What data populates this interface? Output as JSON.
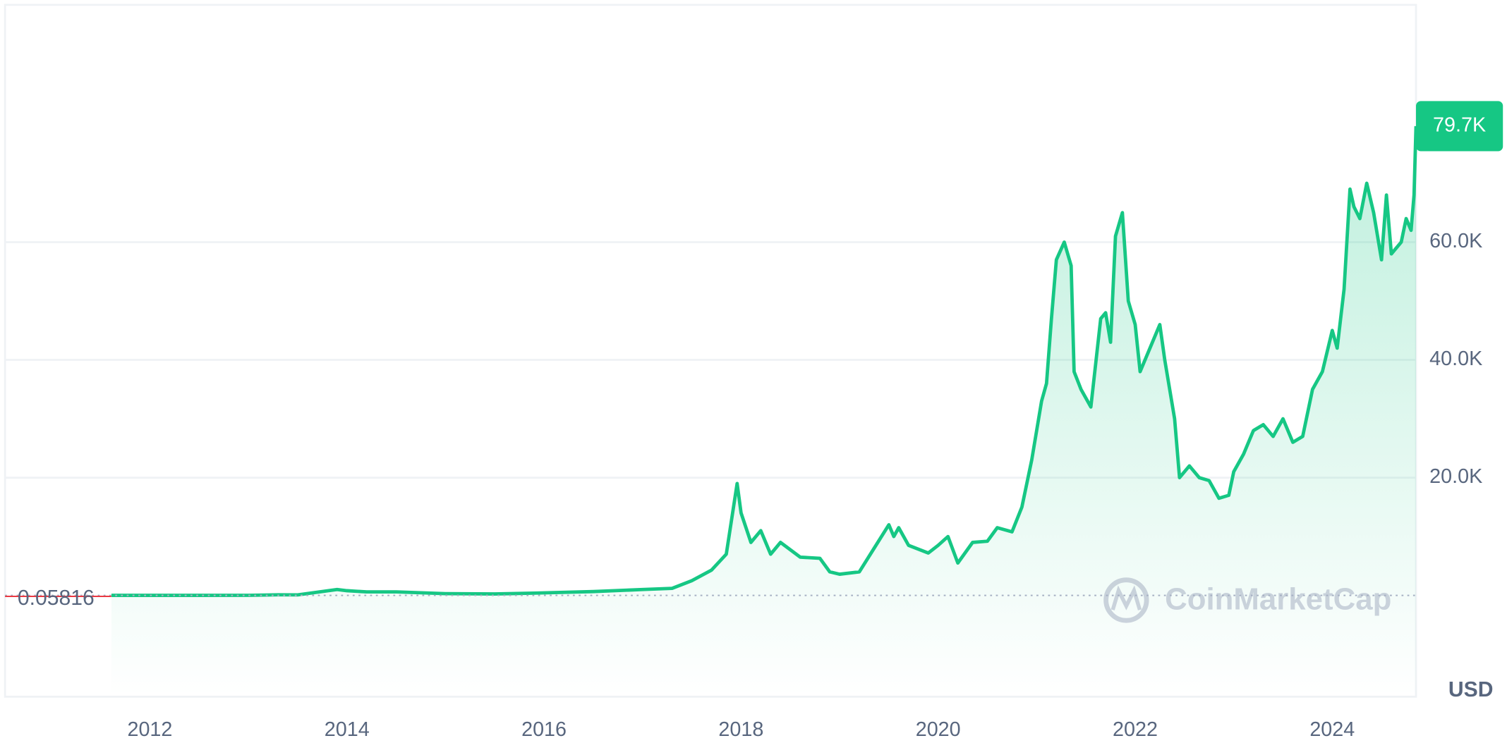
{
  "chart_data": {
    "type": "line",
    "x": [
      2011.61,
      2012.0,
      2012.5,
      2013.0,
      2013.3,
      2013.5,
      2013.9,
      2014.0,
      2014.2,
      2014.5,
      2015.0,
      2015.5,
      2016.0,
      2016.5,
      2017.0,
      2017.3,
      2017.5,
      2017.7,
      2017.85,
      2017.96,
      2018.0,
      2018.1,
      2018.2,
      2018.3,
      2018.4,
      2018.6,
      2018.8,
      2018.9,
      2019.0,
      2019.2,
      2019.35,
      2019.5,
      2019.55,
      2019.6,
      2019.7,
      2019.9,
      2020.0,
      2020.1,
      2020.2,
      2020.35,
      2020.5,
      2020.6,
      2020.75,
      2020.85,
      2020.95,
      2021.05,
      2021.1,
      2021.15,
      2021.2,
      2021.28,
      2021.35,
      2021.38,
      2021.45,
      2021.55,
      2021.65,
      2021.7,
      2021.75,
      2021.8,
      2021.87,
      2021.93,
      2022.0,
      2022.05,
      2022.15,
      2022.25,
      2022.3,
      2022.4,
      2022.45,
      2022.55,
      2022.65,
      2022.75,
      2022.85,
      2022.95,
      2023.0,
      2023.1,
      2023.2,
      2023.3,
      2023.4,
      2023.5,
      2023.6,
      2023.7,
      2023.8,
      2023.9,
      2024.0,
      2024.05,
      2024.12,
      2024.18,
      2024.22,
      2024.28,
      2024.35,
      2024.42,
      2024.5,
      2024.55,
      2024.6,
      2024.7,
      2024.75,
      2024.8,
      2024.83,
      2024.85
    ],
    "series": [
      {
        "color": "#16c784",
        "values": [
          5,
          5,
          7,
          13,
          100,
          90,
          1000,
          800,
          600,
          600,
          300,
          250,
          430,
          650,
          1000,
          1200,
          2500,
          4300,
          7000,
          19000,
          14000,
          9000,
          11000,
          7000,
          9000,
          6500,
          6300,
          4000,
          3600,
          4000,
          8000,
          12000,
          10000,
          11500,
          8500,
          7200,
          8500,
          10000,
          5500,
          9000,
          9200,
          11500,
          10800,
          15000,
          23000,
          33000,
          36000,
          47000,
          57000,
          60000,
          56000,
          38000,
          35000,
          32000,
          47000,
          48000,
          43000,
          61000,
          65000,
          50000,
          46000,
          38000,
          42000,
          46000,
          40000,
          30000,
          20000,
          22000,
          20000,
          19500,
          16500,
          17000,
          21000,
          24000,
          28000,
          29000,
          27000,
          30000,
          26000,
          27000,
          35000,
          38000,
          45000,
          42000,
          52000,
          69000,
          66000,
          64000,
          70000,
          65000,
          57000,
          68000,
          58000,
          60000,
          64000,
          62000,
          68000,
          79700
        ]
      }
    ],
    "xlim": [
      2010.53,
      2024.85
    ],
    "ylim": [
      -17200,
      100300
    ],
    "xticks": [
      2012,
      2014,
      2016,
      2018,
      2020,
      2022,
      2024
    ],
    "yticks": [
      {
        "value": 20000,
        "label": "20.0K"
      },
      {
        "value": 40000,
        "label": "40.0K"
      },
      {
        "value": 60000,
        "label": "60.0K"
      }
    ],
    "grid": true,
    "start_price": {
      "value": 0.05816,
      "label": "0.05816"
    },
    "current_price": {
      "value": 79700,
      "label": "79.7K"
    },
    "currency": "USD",
    "watermark": "CoinMarketCap"
  }
}
